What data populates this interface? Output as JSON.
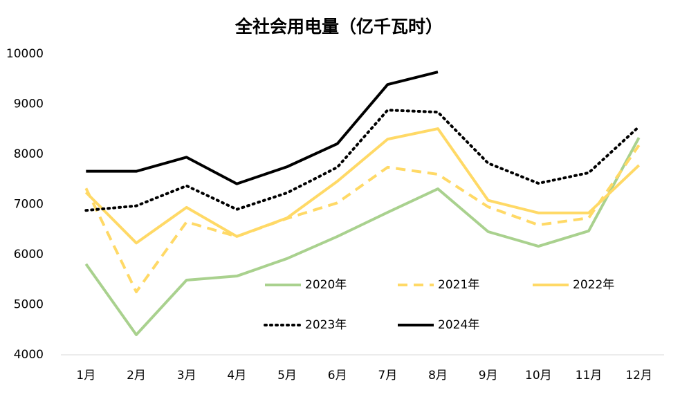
{
  "chart_data": {
    "type": "line",
    "title": "全社会用电量（亿千瓦时）",
    "categories": [
      "1月",
      "2月",
      "3月",
      "4月",
      "5月",
      "6月",
      "7月",
      "8月",
      "9月",
      "10月",
      "11月",
      "12月"
    ],
    "series": [
      {
        "name": "2020年",
        "color": "#a9d18e",
        "style": "solid",
        "values": [
          5810,
          4400,
          5490,
          5570,
          5920,
          6360,
          6840,
          7310,
          6455,
          6165,
          6470,
          8330
        ]
      },
      {
        "name": "2021年",
        "color": "#ffd966",
        "style": "dashed",
        "values": [
          7320,
          5255,
          6650,
          6360,
          6720,
          7030,
          7740,
          7600,
          6950,
          6590,
          6730,
          8180
        ]
      },
      {
        "name": "2022年",
        "color": "#ffd966",
        "style": "solid",
        "values": [
          7240,
          6230,
          6940,
          6360,
          6730,
          7460,
          8300,
          8510,
          7080,
          6830,
          6830,
          7780
        ]
      },
      {
        "name": "2023年",
        "color": "#000000",
        "style": "dotted",
        "values": [
          6880,
          6970,
          7370,
          6900,
          7230,
          7740,
          8880,
          8840,
          7820,
          7420,
          7630,
          8550
        ]
      },
      {
        "name": "2024年",
        "color": "#000000",
        "style": "solid",
        "values": [
          7660,
          7660,
          7940,
          7410,
          7750,
          8210,
          9390,
          9640,
          null,
          null,
          null,
          null
        ]
      }
    ],
    "ylim": [
      4000,
      10000
    ],
    "yticks": [
      4000,
      5000,
      6000,
      7000,
      8000,
      9000,
      10000
    ],
    "grid": false,
    "legend": "lower center"
  }
}
